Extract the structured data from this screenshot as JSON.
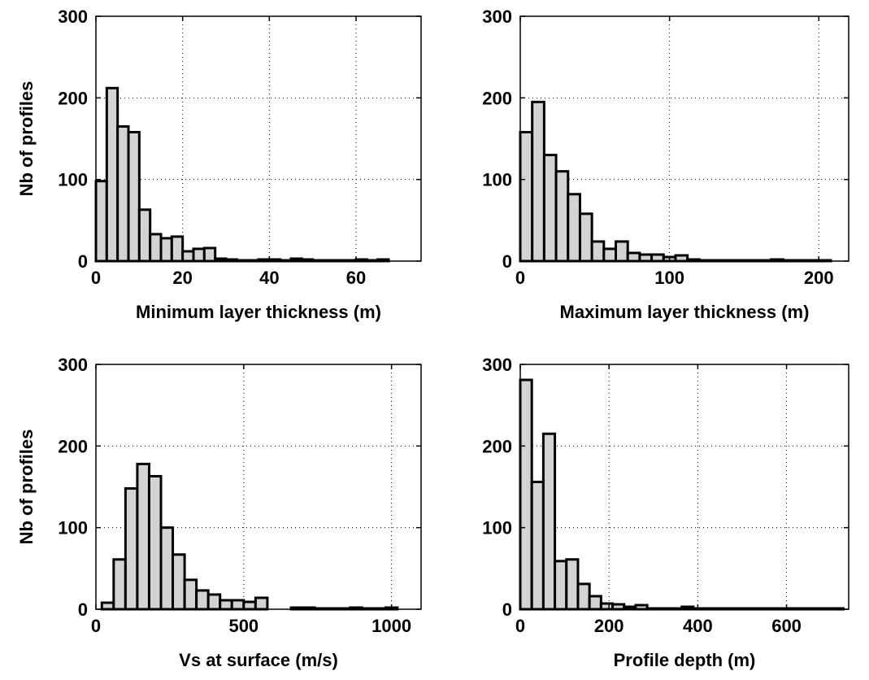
{
  "style": {
    "bar_fill": "#d3d3d3",
    "bar_stroke": "#000000",
    "grid": "dotted",
    "background": "#ffffff"
  },
  "chart_data": [
    {
      "type": "bar",
      "xlabel": "Minimum layer thickness (m)",
      "ylabel": "Nb of profiles",
      "xlim": [
        0,
        75
      ],
      "ylim": [
        0,
        300
      ],
      "xticks": [
        0,
        20,
        40,
        60
      ],
      "yticks": [
        0,
        100,
        200,
        300
      ],
      "grid": true,
      "bin_edges": [
        0,
        2.5,
        5,
        7.5,
        10,
        12.5,
        15,
        17.5,
        20,
        22.5,
        25,
        27.5,
        30,
        32.5,
        35,
        37.5,
        40,
        42.5,
        45,
        47.5,
        50,
        52.5,
        55,
        57.5,
        60,
        62.5,
        65,
        67.5,
        70,
        72.5,
        75
      ],
      "values": [
        98,
        212,
        165,
        158,
        63,
        33,
        28,
        30,
        12,
        15,
        16,
        3,
        2,
        1,
        1,
        2,
        2,
        1,
        3,
        2,
        1,
        1,
        1,
        1,
        2,
        1,
        2,
        0,
        0,
        0
      ]
    },
    {
      "type": "bar",
      "xlabel": "Maximum layer thickness (m)",
      "ylabel": "",
      "xlim": [
        0,
        220
      ],
      "ylim": [
        0,
        300
      ],
      "xticks": [
        0,
        100,
        200
      ],
      "yticks": [
        0,
        100,
        200,
        300
      ],
      "grid": true,
      "bin_edges": [
        0,
        8,
        16,
        24,
        32,
        40,
        48,
        56,
        64,
        72,
        80,
        88,
        96,
        104,
        112,
        120,
        128,
        136,
        144,
        152,
        160,
        168,
        176,
        184,
        192,
        200,
        208
      ],
      "values": [
        158,
        195,
        130,
        110,
        82,
        58,
        24,
        15,
        24,
        10,
        8,
        8,
        5,
        7,
        2,
        1,
        1,
        1,
        1,
        1,
        1,
        2,
        1,
        1,
        1,
        1
      ]
    },
    {
      "type": "bar",
      "xlabel": "Vs at surface (m/s)",
      "ylabel": "Nb of profiles",
      "xlim": [
        0,
        1100
      ],
      "ylim": [
        0,
        300
      ],
      "xticks": [
        0,
        500,
        1000
      ],
      "yticks": [
        0,
        100,
        200,
        300
      ],
      "grid": true,
      "bin_edges": [
        20,
        60,
        100,
        140,
        180,
        220,
        260,
        300,
        340,
        380,
        420,
        460,
        500,
        540,
        580,
        620,
        660,
        700,
        740,
        780,
        820,
        860,
        900,
        940,
        980,
        1020,
        1060
      ],
      "values": [
        8,
        61,
        148,
        178,
        163,
        100,
        67,
        36,
        23,
        18,
        11,
        11,
        9,
        14,
        0,
        0,
        2,
        2,
        1,
        1,
        1,
        2,
        1,
        1,
        2,
        0
      ]
    },
    {
      "type": "bar",
      "xlabel": "Profile depth (m)",
      "ylabel": "",
      "xlim": [
        0,
        740
      ],
      "ylim": [
        0,
        300
      ],
      "xticks": [
        0,
        200,
        400,
        600
      ],
      "yticks": [
        0,
        100,
        200,
        300
      ],
      "grid": true,
      "bin_edges": [
        0,
        26,
        52,
        78,
        104,
        130,
        156,
        182,
        208,
        234,
        260,
        286,
        312,
        338,
        364,
        390,
        416,
        442,
        468,
        494,
        520,
        546,
        572,
        598,
        624,
        650,
        676,
        702,
        728
      ],
      "values": [
        281,
        156,
        215,
        59,
        61,
        31,
        16,
        7,
        6,
        3,
        5,
        1,
        1,
        1,
        3,
        1,
        1,
        1,
        1,
        1,
        1,
        1,
        1,
        1,
        1,
        1,
        1,
        1
      ]
    }
  ]
}
